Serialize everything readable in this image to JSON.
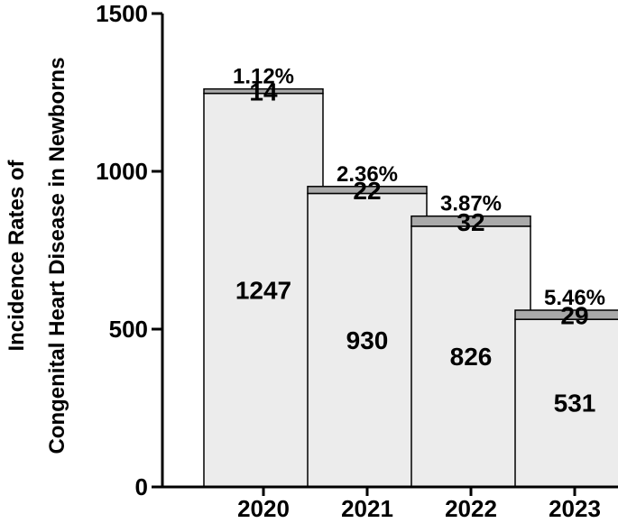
{
  "chart_data": {
    "type": "bar",
    "stacked": true,
    "categories": [
      "2020",
      "2021",
      "2022",
      "2023"
    ],
    "series": [
      {
        "values": [
          1247,
          930,
          826,
          531
        ],
        "color": "#ececec"
      },
      {
        "values": [
          14,
          22,
          32,
          29
        ],
        "color": "#a9a9a9"
      }
    ],
    "percent_labels": [
      "1.12%",
      "2.36%",
      "3.87%",
      "5.46%"
    ],
    "ylabel_lines": [
      "Incidence Rates of",
      "Congenital Heart Disease in Newborns"
    ],
    "xlabel": "",
    "ylim": [
      0,
      1500
    ],
    "yticks": [
      0,
      500,
      1000,
      1500
    ],
    "ytick_labels": [
      "0",
      "500",
      "1000",
      "1500"
    ],
    "grid": false,
    "legend": "none"
  }
}
